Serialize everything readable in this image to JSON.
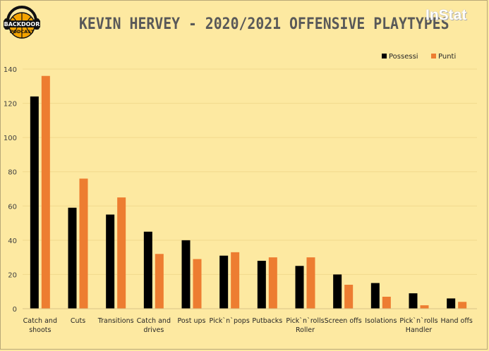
{
  "header": {
    "title": "KEVIN HERVEY  - 2020/2021 OFFENSIVE PLAYTYPES",
    "brand": "InStat",
    "logo_top": "BACKDOOR",
    "logo_bottom": "PODCAST"
  },
  "colors": {
    "background": "#fde9a1",
    "gridline": "#f1d98d",
    "series_possessi": "#000000",
    "series_punti": "#ed7d31",
    "logo_orange": "#f4a300"
  },
  "chart_data": {
    "type": "bar",
    "categories": [
      [
        "Catch and",
        "shoots"
      ],
      [
        "Cuts"
      ],
      [
        "Transitions"
      ],
      [
        "Catch and",
        "drives"
      ],
      [
        "Post ups"
      ],
      [
        "Pick`n`pops"
      ],
      [
        "Putbacks"
      ],
      [
        "Pick`n`rolls",
        "Roller"
      ],
      [
        "Screen offs"
      ],
      [
        "Isolations"
      ],
      [
        "Pick`n`rolls",
        "Handler"
      ],
      [
        "Hand offs"
      ]
    ],
    "series": [
      {
        "name": "Possessi",
        "values": [
          124,
          59,
          55,
          45,
          40,
          31,
          28,
          25,
          20,
          15,
          9,
          6
        ]
      },
      {
        "name": "Punti",
        "values": [
          136,
          76,
          65,
          32,
          29,
          33,
          30,
          30,
          14,
          7,
          2,
          4
        ]
      }
    ],
    "ylim": [
      0,
      140
    ],
    "yticks": [
      0,
      20,
      40,
      60,
      80,
      100,
      120,
      140
    ],
    "grid": true,
    "legend": "top-right"
  }
}
